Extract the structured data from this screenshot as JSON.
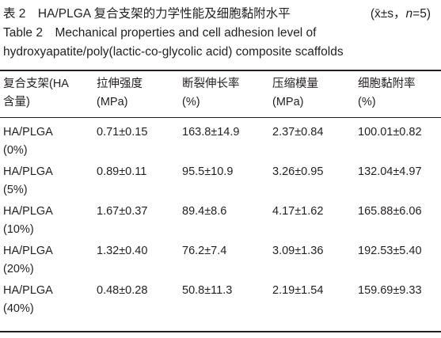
{
  "caption": {
    "cn_title": "表 2　HA/PLGA 复合支架的力学性能及细胞黏附水平",
    "stat_prefix": "(x̄±s，",
    "stat_n": "n",
    "stat_suffix": "=5)",
    "en_line1": "Table 2　Mechanical properties and cell adhesion level of",
    "en_line2": "hydroxyapatite/poly(lactic-co-glycolic acid) composite scaffolds"
  },
  "table": {
    "headers": [
      {
        "line1": "复合支架(HA",
        "line2": "含量)"
      },
      {
        "line1": "拉伸强度",
        "line2": "(MPa)"
      },
      {
        "line1": "断裂伸长率",
        "line2": "(%)"
      },
      {
        "line1": "压缩模量",
        "line2": "(MPa)"
      },
      {
        "line1": "细胞黏附率",
        "line2": "(%)"
      }
    ],
    "rows": [
      {
        "group": "HA/PLGA",
        "content": "(0%)",
        "tensile": "0.71±0.15",
        "elongation": "163.8±14.9",
        "modulus": "2.37±0.84",
        "adhesion": "100.01±0.82"
      },
      {
        "group": "HA/PLGA",
        "content": "(5%)",
        "tensile": "0.89±0.11",
        "elongation": "95.5±10.9",
        "modulus": "3.26±0.95",
        "adhesion": "132.04±4.97"
      },
      {
        "group": "HA/PLGA",
        "content": "(10%)",
        "tensile": "1.67±0.37",
        "elongation": "89.4±8.6",
        "modulus": "4.17±1.62",
        "adhesion": "165.88±6.06"
      },
      {
        "group": "HA/PLGA",
        "content": "(20%)",
        "tensile": "1.32±0.40",
        "elongation": "76.2±7.4",
        "modulus": "3.09±1.36",
        "adhesion": "192.53±5.40"
      },
      {
        "group": "HA/PLGA",
        "content": "(40%)",
        "tensile": "0.48±0.28",
        "elongation": "50.8±11.3",
        "modulus": "2.19±1.54",
        "adhesion": "159.69±9.33"
      }
    ]
  }
}
